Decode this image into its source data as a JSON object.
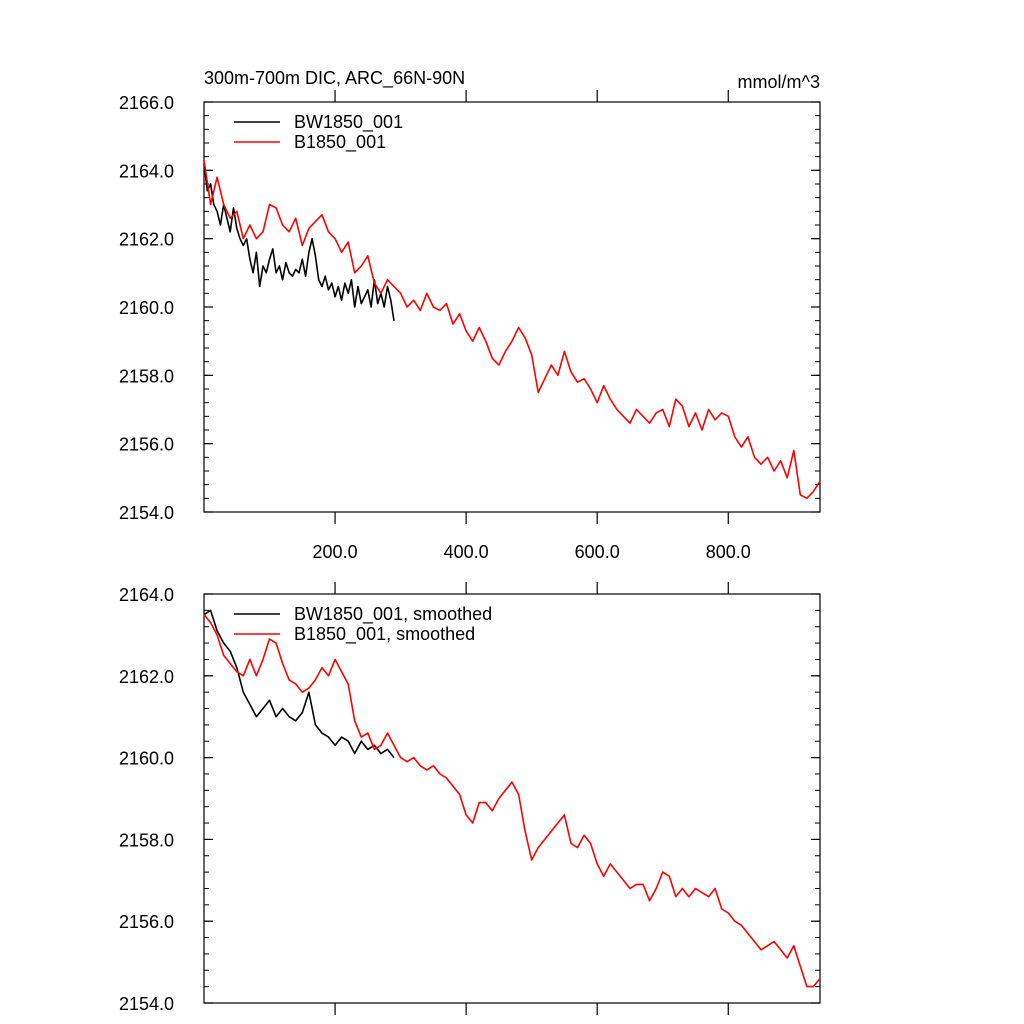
{
  "figure": {
    "units_label": "mmol/m^3"
  },
  "chart_data": [
    {
      "type": "line",
      "title": "300m-700m DIC, ARC_66N-90N",
      "units": "mmol/m^3",
      "xlabel": "",
      "ylabel": "",
      "xlim": [
        0,
        940
      ],
      "ylim": [
        2154.0,
        2166.0
      ],
      "yticks": [
        2154.0,
        2156.0,
        2158.0,
        2160.0,
        2162.0,
        2164.0,
        2166.0
      ],
      "ytick_labels": [
        "2154.0",
        "2156.0",
        "2158.0",
        "2160.0",
        "2162.0",
        "2164.0",
        "2166.0"
      ],
      "xticks": [
        200,
        400,
        600,
        800
      ],
      "xtick_labels": [
        "200.0",
        "400.0",
        "600.0",
        "800.0"
      ],
      "grid": false,
      "legend_position": "top-left",
      "series": [
        {
          "name": "BW1850_001",
          "color": "#000000",
          "x": [
            0,
            5,
            10,
            15,
            20,
            25,
            30,
            35,
            40,
            45,
            50,
            55,
            60,
            65,
            70,
            75,
            80,
            85,
            90,
            95,
            100,
            105,
            110,
            115,
            120,
            125,
            130,
            135,
            140,
            145,
            150,
            155,
            160,
            165,
            170,
            175,
            180,
            185,
            190,
            195,
            200,
            205,
            210,
            215,
            220,
            225,
            230,
            235,
            240,
            245,
            250,
            255,
            260,
            265,
            270,
            275,
            280,
            285,
            290
          ],
          "y": [
            2164.2,
            2163.4,
            2163.6,
            2163.0,
            2162.8,
            2162.4,
            2163.0,
            2162.6,
            2162.2,
            2162.9,
            2162.3,
            2162.0,
            2161.8,
            2162.0,
            2161.4,
            2161.0,
            2161.6,
            2160.6,
            2161.2,
            2161.0,
            2161.4,
            2161.7,
            2161.0,
            2161.2,
            2160.8,
            2161.3,
            2161.0,
            2160.9,
            2161.1,
            2161.0,
            2161.4,
            2160.9,
            2161.6,
            2162.0,
            2161.5,
            2160.8,
            2160.6,
            2160.9,
            2160.5,
            2160.7,
            2160.3,
            2160.6,
            2160.2,
            2160.7,
            2160.4,
            2160.8,
            2160.0,
            2160.6,
            2160.1,
            2160.3,
            2160.5,
            2160.0,
            2160.8,
            2160.1,
            2160.4,
            2160.0,
            2160.6,
            2160.2,
            2159.6
          ]
        },
        {
          "name": "B1850_001",
          "color": "#ff0000",
          "x": [
            0,
            10,
            20,
            30,
            40,
            50,
            60,
            70,
            80,
            90,
            100,
            110,
            120,
            130,
            140,
            150,
            160,
            170,
            180,
            190,
            200,
            210,
            220,
            230,
            240,
            250,
            260,
            270,
            280,
            290,
            300,
            310,
            320,
            330,
            340,
            350,
            360,
            370,
            380,
            390,
            400,
            410,
            420,
            430,
            440,
            450,
            460,
            470,
            480,
            490,
            500,
            510,
            520,
            530,
            540,
            550,
            560,
            570,
            580,
            590,
            600,
            610,
            620,
            630,
            640,
            650,
            660,
            670,
            680,
            690,
            700,
            710,
            720,
            730,
            740,
            750,
            760,
            770,
            780,
            790,
            800,
            810,
            820,
            830,
            840,
            850,
            860,
            870,
            880,
            890,
            900,
            910,
            920,
            930,
            940
          ],
          "y": [
            2164.3,
            2163.0,
            2163.8,
            2163.0,
            2162.6,
            2162.8,
            2162.0,
            2162.4,
            2162.0,
            2162.2,
            2163.0,
            2162.9,
            2162.4,
            2162.2,
            2162.6,
            2161.8,
            2162.3,
            2162.5,
            2162.7,
            2162.2,
            2162.0,
            2161.6,
            2161.9,
            2161.0,
            2161.2,
            2161.5,
            2160.7,
            2160.4,
            2160.8,
            2160.6,
            2160.4,
            2160.0,
            2160.2,
            2159.9,
            2160.4,
            2160.0,
            2159.9,
            2160.1,
            2159.5,
            2159.8,
            2159.3,
            2159.0,
            2159.4,
            2159.0,
            2158.5,
            2158.3,
            2158.7,
            2159.0,
            2159.4,
            2159.1,
            2158.6,
            2157.5,
            2157.9,
            2158.3,
            2158.0,
            2158.7,
            2158.1,
            2157.8,
            2157.9,
            2157.6,
            2157.2,
            2157.7,
            2157.3,
            2157.0,
            2156.8,
            2156.6,
            2157.0,
            2156.8,
            2156.6,
            2156.9,
            2157.0,
            2156.5,
            2157.3,
            2157.1,
            2156.5,
            2156.9,
            2156.4,
            2157.0,
            2156.7,
            2156.9,
            2156.8,
            2156.2,
            2155.9,
            2156.2,
            2155.6,
            2155.4,
            2155.6,
            2155.2,
            2155.5,
            2155.0,
            2155.8,
            2154.5,
            2154.4,
            2154.6,
            2154.9
          ]
        }
      ]
    },
    {
      "type": "line",
      "title": "",
      "xlabel": "",
      "ylabel": "",
      "xlim": [
        0,
        940
      ],
      "ylim": [
        2154.0,
        2164.0
      ],
      "yticks": [
        2154.0,
        2156.0,
        2158.0,
        2160.0,
        2162.0,
        2164.0
      ],
      "ytick_labels": [
        "2154.0",
        "2156.0",
        "2158.0",
        "2160.0",
        "2162.0",
        "2164.0"
      ],
      "xticks": [
        200,
        400,
        600,
        800
      ],
      "xtick_labels": [],
      "grid": false,
      "legend_position": "top-left",
      "series": [
        {
          "name": "BW1850_001, smoothed",
          "color": "#000000",
          "x": [
            0,
            10,
            20,
            30,
            40,
            50,
            60,
            70,
            80,
            90,
            100,
            110,
            120,
            130,
            140,
            150,
            160,
            170,
            180,
            190,
            200,
            210,
            220,
            230,
            240,
            250,
            260,
            270,
            280,
            290
          ],
          "y": [
            2163.5,
            2163.6,
            2163.1,
            2162.8,
            2162.6,
            2162.2,
            2161.6,
            2161.3,
            2161.0,
            2161.2,
            2161.4,
            2161.0,
            2161.2,
            2161.0,
            2160.9,
            2161.1,
            2161.6,
            2160.8,
            2160.6,
            2160.5,
            2160.3,
            2160.5,
            2160.4,
            2160.1,
            2160.4,
            2160.2,
            2160.3,
            2160.1,
            2160.2,
            2160.0
          ]
        },
        {
          "name": "B1850_001, smoothed",
          "color": "#ff0000",
          "x": [
            0,
            10,
            20,
            30,
            40,
            50,
            60,
            70,
            80,
            90,
            100,
            110,
            120,
            130,
            140,
            150,
            160,
            170,
            180,
            190,
            200,
            210,
            220,
            230,
            240,
            250,
            260,
            270,
            280,
            290,
            300,
            310,
            320,
            330,
            340,
            350,
            360,
            370,
            380,
            390,
            400,
            410,
            420,
            430,
            440,
            450,
            460,
            470,
            480,
            490,
            500,
            510,
            520,
            530,
            540,
            550,
            560,
            570,
            580,
            590,
            600,
            610,
            620,
            630,
            640,
            650,
            660,
            670,
            680,
            690,
            700,
            710,
            720,
            730,
            740,
            750,
            760,
            770,
            780,
            790,
            800,
            810,
            820,
            830,
            840,
            850,
            860,
            870,
            880,
            890,
            900,
            910,
            920,
            930,
            940
          ],
          "y": [
            2163.5,
            2163.3,
            2163.0,
            2162.5,
            2162.3,
            2162.1,
            2162.0,
            2162.4,
            2162.0,
            2162.4,
            2162.9,
            2162.8,
            2162.3,
            2161.9,
            2161.8,
            2161.6,
            2161.7,
            2161.9,
            2162.2,
            2162.0,
            2162.4,
            2162.1,
            2161.8,
            2160.9,
            2160.5,
            2160.6,
            2160.2,
            2160.3,
            2160.6,
            2160.3,
            2160.0,
            2159.9,
            2160.0,
            2159.8,
            2159.7,
            2159.8,
            2159.6,
            2159.5,
            2159.3,
            2159.1,
            2158.6,
            2158.4,
            2158.9,
            2158.9,
            2158.7,
            2159.0,
            2159.2,
            2159.4,
            2159.1,
            2158.2,
            2157.5,
            2157.8,
            2158.0,
            2158.2,
            2158.4,
            2158.6,
            2157.9,
            2157.8,
            2158.1,
            2157.9,
            2157.4,
            2157.1,
            2157.4,
            2157.2,
            2157.0,
            2156.8,
            2156.9,
            2156.9,
            2156.5,
            2156.8,
            2157.2,
            2157.1,
            2156.6,
            2156.8,
            2156.6,
            2156.8,
            2156.7,
            2156.6,
            2156.8,
            2156.3,
            2156.2,
            2156.0,
            2155.9,
            2155.7,
            2155.5,
            2155.3,
            2155.4,
            2155.5,
            2155.3,
            2155.1,
            2155.4,
            2154.9,
            2154.4,
            2154.4,
            2154.6
          ]
        }
      ]
    }
  ]
}
